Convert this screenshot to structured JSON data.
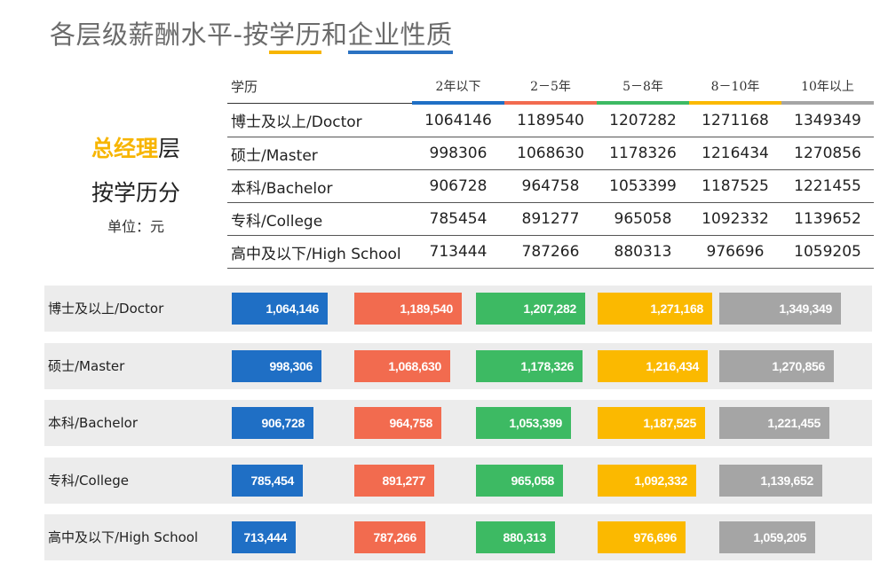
{
  "title": {
    "part1": "各层级薪酬水平-按",
    "part2": "学历",
    "part3": "和",
    "part4": "企业性质"
  },
  "side": {
    "hl": "总经理",
    "suffix": "层",
    "line2": "按学历分",
    "unit": "单位：元"
  },
  "table": {
    "header_label": "学历",
    "years": [
      "2年以下",
      "2－5年",
      "5－8年",
      "8－10年",
      "10年以上"
    ],
    "rows": [
      {
        "label": "博士及以上/Doctor",
        "values": [
          "1064146",
          "1189540",
          "1207282",
          "1271168",
          "1349349"
        ]
      },
      {
        "label": "硕士/Master",
        "values": [
          "998306",
          "1068630",
          "1178326",
          "1216434",
          "1270856"
        ]
      },
      {
        "label": "本科/Bachelor",
        "values": [
          "906728",
          "964758",
          "1053399",
          "1187525",
          "1221455"
        ]
      },
      {
        "label": "专科/College",
        "values": [
          "785454",
          "891277",
          "965058",
          "1092332",
          "1139652"
        ]
      },
      {
        "label": "高中及以下/High School",
        "values": [
          "713444",
          "787266",
          "880313",
          "976696",
          "1059205"
        ]
      }
    ]
  },
  "chart_data": {
    "type": "bar",
    "title": "",
    "categories": [
      "博士及以上/Doctor",
      "硕士/Master",
      "本科/Bachelor",
      "专科/College",
      "高中及以下/High School"
    ],
    "series": [
      {
        "name": "2年以下",
        "color": "#1f6fc5",
        "values": [
          1064146,
          998306,
          906728,
          785454,
          713444
        ],
        "labels": [
          "1,064,146",
          "998,306",
          "906,728",
          "785,454",
          "713,444"
        ]
      },
      {
        "name": "2－5年",
        "color": "#f26b4f",
        "values": [
          1189540,
          1068630,
          964758,
          891277,
          787266
        ],
        "labels": [
          "1,189,540",
          "1,068,630",
          "964,758",
          "891,277",
          "787,266"
        ]
      },
      {
        "name": "5－8年",
        "color": "#3dba63",
        "values": [
          1207282,
          1178326,
          1053399,
          965058,
          880313
        ],
        "labels": [
          "1,207,282",
          "1,178,326",
          "1,053,399",
          "965,058",
          "880,313"
        ]
      },
      {
        "name": "8－10年",
        "color": "#fbb900",
        "values": [
          1271168,
          1216434,
          1187525,
          1092332,
          976696
        ],
        "labels": [
          "1,271,168",
          "1,216,434",
          "1,187,525",
          "1,092,332",
          "976,696"
        ]
      },
      {
        "name": "10年以上",
        "color": "#a5a5a5",
        "values": [
          1349349,
          1270856,
          1221455,
          1139652,
          1059205
        ],
        "labels": [
          "1,349,349",
          "1,270,856",
          "1,221,455",
          "1,139,652",
          "1,059,205"
        ]
      }
    ]
  }
}
